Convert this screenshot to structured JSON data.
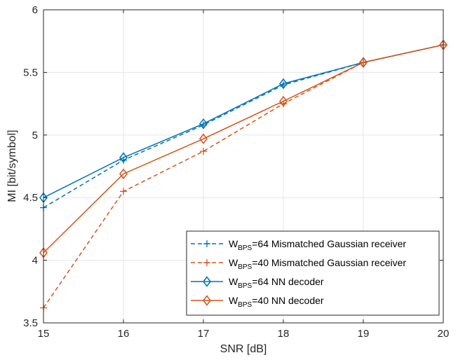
{
  "chart_data": {
    "type": "line",
    "xlabel": "SNR [dB]",
    "ylabel": "MI [bit/symbol]",
    "xlim": [
      15,
      20
    ],
    "ylim": [
      3.5,
      6
    ],
    "x": [
      15,
      16,
      17,
      18,
      19,
      20
    ],
    "xticks": [
      "15",
      "16",
      "17",
      "18",
      "19",
      "20"
    ],
    "yticks": [
      "3.5",
      "4",
      "4.5",
      "5",
      "5.5",
      "6"
    ],
    "grid": true,
    "legend_position": "bottom-right",
    "series": [
      {
        "name_main": "W",
        "name_sub": "BPS",
        "name_rest": "=64 Mismatched Gaussian receiver",
        "color": "#0072BD",
        "line_style": "dashed",
        "marker": "plus",
        "values": [
          4.42,
          4.8,
          5.08,
          5.4,
          5.58,
          5.72
        ]
      },
      {
        "name_main": "W",
        "name_sub": "BPS",
        "name_rest": "=40 Mismatched Gaussian receiver",
        "color": "#D95319",
        "line_style": "dashed",
        "marker": "plus",
        "values": [
          3.62,
          4.55,
          4.87,
          5.25,
          5.58,
          5.72
        ]
      },
      {
        "name_main": "W",
        "name_sub": "BPS",
        "name_rest": "=64 NN decoder",
        "color": "#0072BD",
        "line_style": "solid",
        "marker": "diamond",
        "values": [
          4.5,
          4.82,
          5.09,
          5.41,
          5.58,
          5.72
        ]
      },
      {
        "name_main": "W",
        "name_sub": "BPS",
        "name_rest": "=40 NN decoder",
        "color": "#D95319",
        "line_style": "solid",
        "marker": "diamond",
        "values": [
          4.06,
          4.69,
          4.97,
          5.27,
          5.58,
          5.72
        ]
      }
    ]
  }
}
